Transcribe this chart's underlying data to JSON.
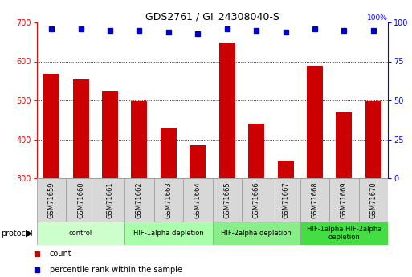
{
  "title": "GDS2761 / GI_24308040-S",
  "samples": [
    "GSM71659",
    "GSM71660",
    "GSM71661",
    "GSM71662",
    "GSM71663",
    "GSM71664",
    "GSM71665",
    "GSM71666",
    "GSM71667",
    "GSM71668",
    "GSM71669",
    "GSM71670"
  ],
  "counts": [
    568,
    554,
    525,
    498,
    430,
    385,
    648,
    441,
    346,
    588,
    469,
    497
  ],
  "percentile_ranks": [
    96,
    96,
    95,
    95,
    94,
    93,
    96,
    95,
    94,
    96,
    95,
    95
  ],
  "ylim_left": [
    300,
    700
  ],
  "ylim_right": [
    0,
    100
  ],
  "yticks_left": [
    300,
    400,
    500,
    600,
    700
  ],
  "yticks_right": [
    0,
    25,
    50,
    75,
    100
  ],
  "bar_color": "#cc0000",
  "dot_color": "#0000cc",
  "grid_color": "#000000",
  "tick_label_area_color": "#d8d8d8",
  "protocol_groups": [
    {
      "label": "control",
      "start": 0,
      "end": 2,
      "color": "#ccffcc"
    },
    {
      "label": "HIF-1alpha depletion",
      "start": 3,
      "end": 5,
      "color": "#aaffaa"
    },
    {
      "label": "HIF-2alpha depletion",
      "start": 6,
      "end": 8,
      "color": "#88ee88"
    },
    {
      "label": "HIF-1alpha HIF-2alpha\ndepletion",
      "start": 9,
      "end": 11,
      "color": "#44dd44"
    }
  ],
  "legend_items": [
    {
      "label": "count",
      "color": "#cc0000"
    },
    {
      "label": "percentile rank within the sample",
      "color": "#0000cc"
    }
  ],
  "figsize": [
    5.13,
    3.45
  ],
  "dpi": 100
}
